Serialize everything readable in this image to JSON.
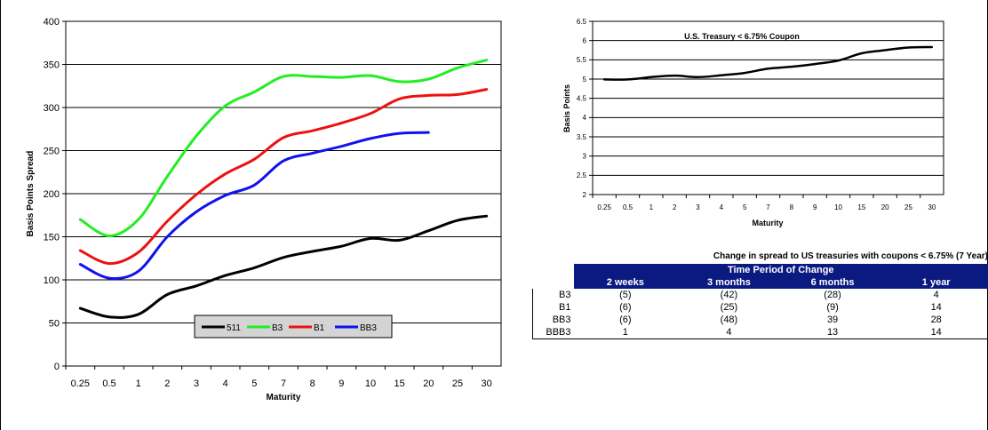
{
  "chart_data": [
    {
      "type": "line",
      "title": "",
      "xlabel": "Maturity",
      "ylabel": "Basis Points Spread",
      "ylim": [
        0,
        400
      ],
      "yticks": [
        0,
        50,
        100,
        150,
        200,
        250,
        300,
        350,
        400
      ],
      "categories": [
        "0.25",
        "0.5",
        "1",
        "2",
        "3",
        "4",
        "5",
        "7",
        "8",
        "9",
        "10",
        "15",
        "20",
        "25",
        "30"
      ],
      "grid": true,
      "legend": "bottom-center",
      "series": [
        {
          "name": "511",
          "color": "#000000",
          "values": [
            67,
            57,
            60,
            83,
            93,
            105,
            114,
            126,
            133,
            139,
            148,
            146,
            157,
            169,
            174
          ]
        },
        {
          "name": "B3",
          "color": "#22ee22",
          "values": [
            170,
            151,
            170,
            220,
            267,
            302,
            318,
            336,
            336,
            335,
            337,
            330,
            333,
            346,
            355
          ]
        },
        {
          "name": "B1",
          "color": "#ee1111",
          "values": [
            134,
            119,
            132,
            168,
            199,
            223,
            240,
            265,
            273,
            282,
            293,
            310,
            314,
            315,
            321
          ]
        },
        {
          "name": "BB3",
          "color": "#1111ee",
          "values": [
            118,
            102,
            110,
            150,
            179,
            198,
            210,
            238,
            247,
            255,
            264,
            270,
            271,
            null,
            null
          ]
        }
      ]
    },
    {
      "type": "line",
      "title": "U.S. Treasury < 6.75% Coupon",
      "xlabel": "Maturity",
      "ylabel": "Basis Points",
      "ylim": [
        2,
        6.5
      ],
      "yticks": [
        "2",
        "2.5",
        "3",
        "3.5",
        "4",
        "4.5",
        "5",
        "5.5",
        "6",
        "6.5"
      ],
      "categories": [
        "0.25",
        "0.5",
        "1",
        "2",
        "3",
        "4",
        "5",
        "7",
        "8",
        "9",
        "10",
        "15",
        "20",
        "25",
        "30"
      ],
      "grid": true,
      "series": [
        {
          "name": "",
          "color": "#000000",
          "values": [
            4.99,
            4.99,
            5.05,
            5.09,
            5.05,
            5.1,
            5.16,
            5.27,
            5.32,
            5.39,
            5.48,
            5.67,
            5.75,
            5.82,
            5.83
          ]
        }
      ]
    }
  ],
  "table": {
    "title": "Change in spread to US treasuries with coupons < 6.75% (7 Year)",
    "band": "Time Period of Change",
    "headers": [
      "2 weeks",
      "3 months",
      "6 months",
      "1 year"
    ],
    "rows": [
      {
        "label": "B3",
        "cells": [
          "(5)",
          "(42)",
          "(28)",
          "4"
        ]
      },
      {
        "label": "B1",
        "cells": [
          "(6)",
          "(25)",
          "(9)",
          "14"
        ]
      },
      {
        "label": "BB3",
        "cells": [
          "(6)",
          "(48)",
          "39",
          "28"
        ]
      },
      {
        "label": "BBB3",
        "cells": [
          "1",
          "4",
          "13",
          "14"
        ]
      }
    ]
  }
}
